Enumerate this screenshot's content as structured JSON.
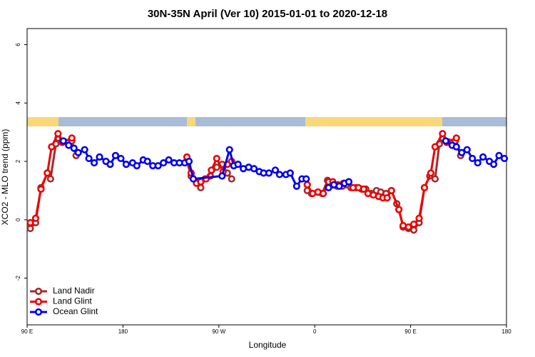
{
  "chart_data": {
    "type": "line",
    "title": "30N-35N April (Ver 10)   2015-01-01 to 2020-12-18",
    "x_label": "Longitude",
    "y_label": "XCO2 - MLO trend (ppm)",
    "xlim": [
      90,
      540
    ],
    "xticks": [
      {
        "value": 90,
        "label": "90 E"
      },
      180,
      {
        "value": 270,
        "label": "90 W"
      },
      {
        "value": 360,
        "label": "0"
      },
      {
        "value": 450,
        "label": "90 E"
      },
      {
        "value": 540,
        "label": "180"
      }
    ],
    "ylim": [
      -3.6,
      6.55
    ],
    "yticks": [
      -2,
      0,
      2,
      4,
      6
    ],
    "legend": "bottomleft",
    "series": [
      {
        "name": "Land Nadir",
        "color": "#a52a2a",
        "x": [
          93,
          98,
          103,
          109,
          112,
          117,
          119,
          132,
          136,
          190,
          240,
          244,
          249,
          253,
          257,
          262,
          268,
          273,
          278,
          282,
          320,
          353,
          357,
          363,
          367,
          372,
          377,
          381,
          386,
          390,
          394,
          399,
          404,
          408,
          413,
          418,
          422,
          427,
          432,
          437,
          439,
          443,
          448,
          453,
          458,
          463,
          468,
          473,
          477,
          480,
          492,
          497
        ],
        "values": [
          -0.3,
          -0.1,
          1.1,
          1.6,
          1.4,
          2.6,
          2.8,
          2.7,
          2.2,
          null,
          2.0,
          1.5,
          1.3,
          1.1,
          1.4,
          1.5,
          1.8,
          1.9,
          1.6,
          1.4,
          null,
          1.0,
          0.9,
          0.95,
          0.9,
          1.35,
          1.2,
          1.15,
          1.15,
          1.2,
          1.1,
          1.1,
          1.05,
          1.05,
          0.9,
          1.0,
          0.95,
          0.9,
          1.0,
          0.55,
          0.35,
          -0.25,
          -0.3,
          -0.35,
          -0.1,
          1.1,
          1.5,
          1.4,
          2.6,
          2.8,
          2.7,
          2.2
        ]
      },
      {
        "name": "Land Glint",
        "color": "#ee0000",
        "x": [
          93,
          98,
          103,
          109,
          113,
          119,
          123,
          132,
          190,
          240,
          244,
          249,
          253,
          258,
          263,
          268,
          274,
          278,
          282,
          320,
          353,
          358,
          363,
          368,
          373,
          377,
          382,
          387,
          392,
          396,
          401,
          406,
          410,
          415,
          420,
          424,
          428,
          432,
          439,
          443,
          448,
          453,
          458,
          463,
          469,
          473,
          480,
          484,
          493
        ],
        "values": [
          -0.1,
          0.05,
          1.05,
          1.6,
          2.5,
          2.95,
          2.65,
          2.8,
          null,
          2.15,
          1.6,
          1.25,
          1.3,
          1.4,
          1.7,
          2.1,
          1.65,
          1.9,
          2.0,
          null,
          1.2,
          0.9,
          0.95,
          0.9,
          1.3,
          1.3,
          1.2,
          1.25,
          1.3,
          1.1,
          1.1,
          1.05,
          0.9,
          0.85,
          0.8,
          0.75,
          0.75,
          1.0,
          0.35,
          -0.2,
          -0.25,
          -0.15,
          0.05,
          1.1,
          1.6,
          2.5,
          2.95,
          2.65,
          2.8
        ]
      },
      {
        "name": "Ocean Glint",
        "color": "#0000ee",
        "x": [
          124,
          129,
          134,
          138,
          144,
          148,
          153,
          158,
          164,
          168,
          173,
          178,
          183,
          189,
          193,
          199,
          203,
          208,
          213,
          218,
          223,
          228,
          233,
          238,
          242,
          246,
          273,
          280,
          284,
          288,
          293,
          298,
          303,
          308,
          312,
          317,
          323,
          327,
          333,
          337,
          343,
          348,
          352,
          362,
          373,
          378,
          383,
          388,
          392,
          450,
          483,
          489,
          493,
          498,
          503,
          508,
          513,
          518,
          524,
          528,
          533,
          538
        ],
        "values": [
          2.7,
          2.55,
          2.45,
          2.3,
          2.4,
          2.1,
          1.95,
          2.15,
          2.0,
          1.9,
          2.2,
          2.1,
          1.9,
          1.95,
          1.85,
          2.05,
          2.0,
          1.85,
          1.85,
          1.95,
          2.05,
          1.95,
          1.95,
          1.95,
          2.0,
          1.4,
          1.5,
          2.4,
          1.85,
          1.9,
          1.75,
          1.8,
          1.75,
          1.65,
          1.6,
          1.6,
          1.7,
          1.55,
          1.55,
          1.6,
          1.15,
          1.4,
          1.4,
          null,
          1.1,
          1.2,
          1.15,
          1.25,
          1.3,
          null,
          2.7,
          2.55,
          2.5,
          2.3,
          2.4,
          2.1,
          1.95,
          2.15,
          2.0,
          1.9,
          2.2,
          2.1
        ]
      }
    ]
  }
}
